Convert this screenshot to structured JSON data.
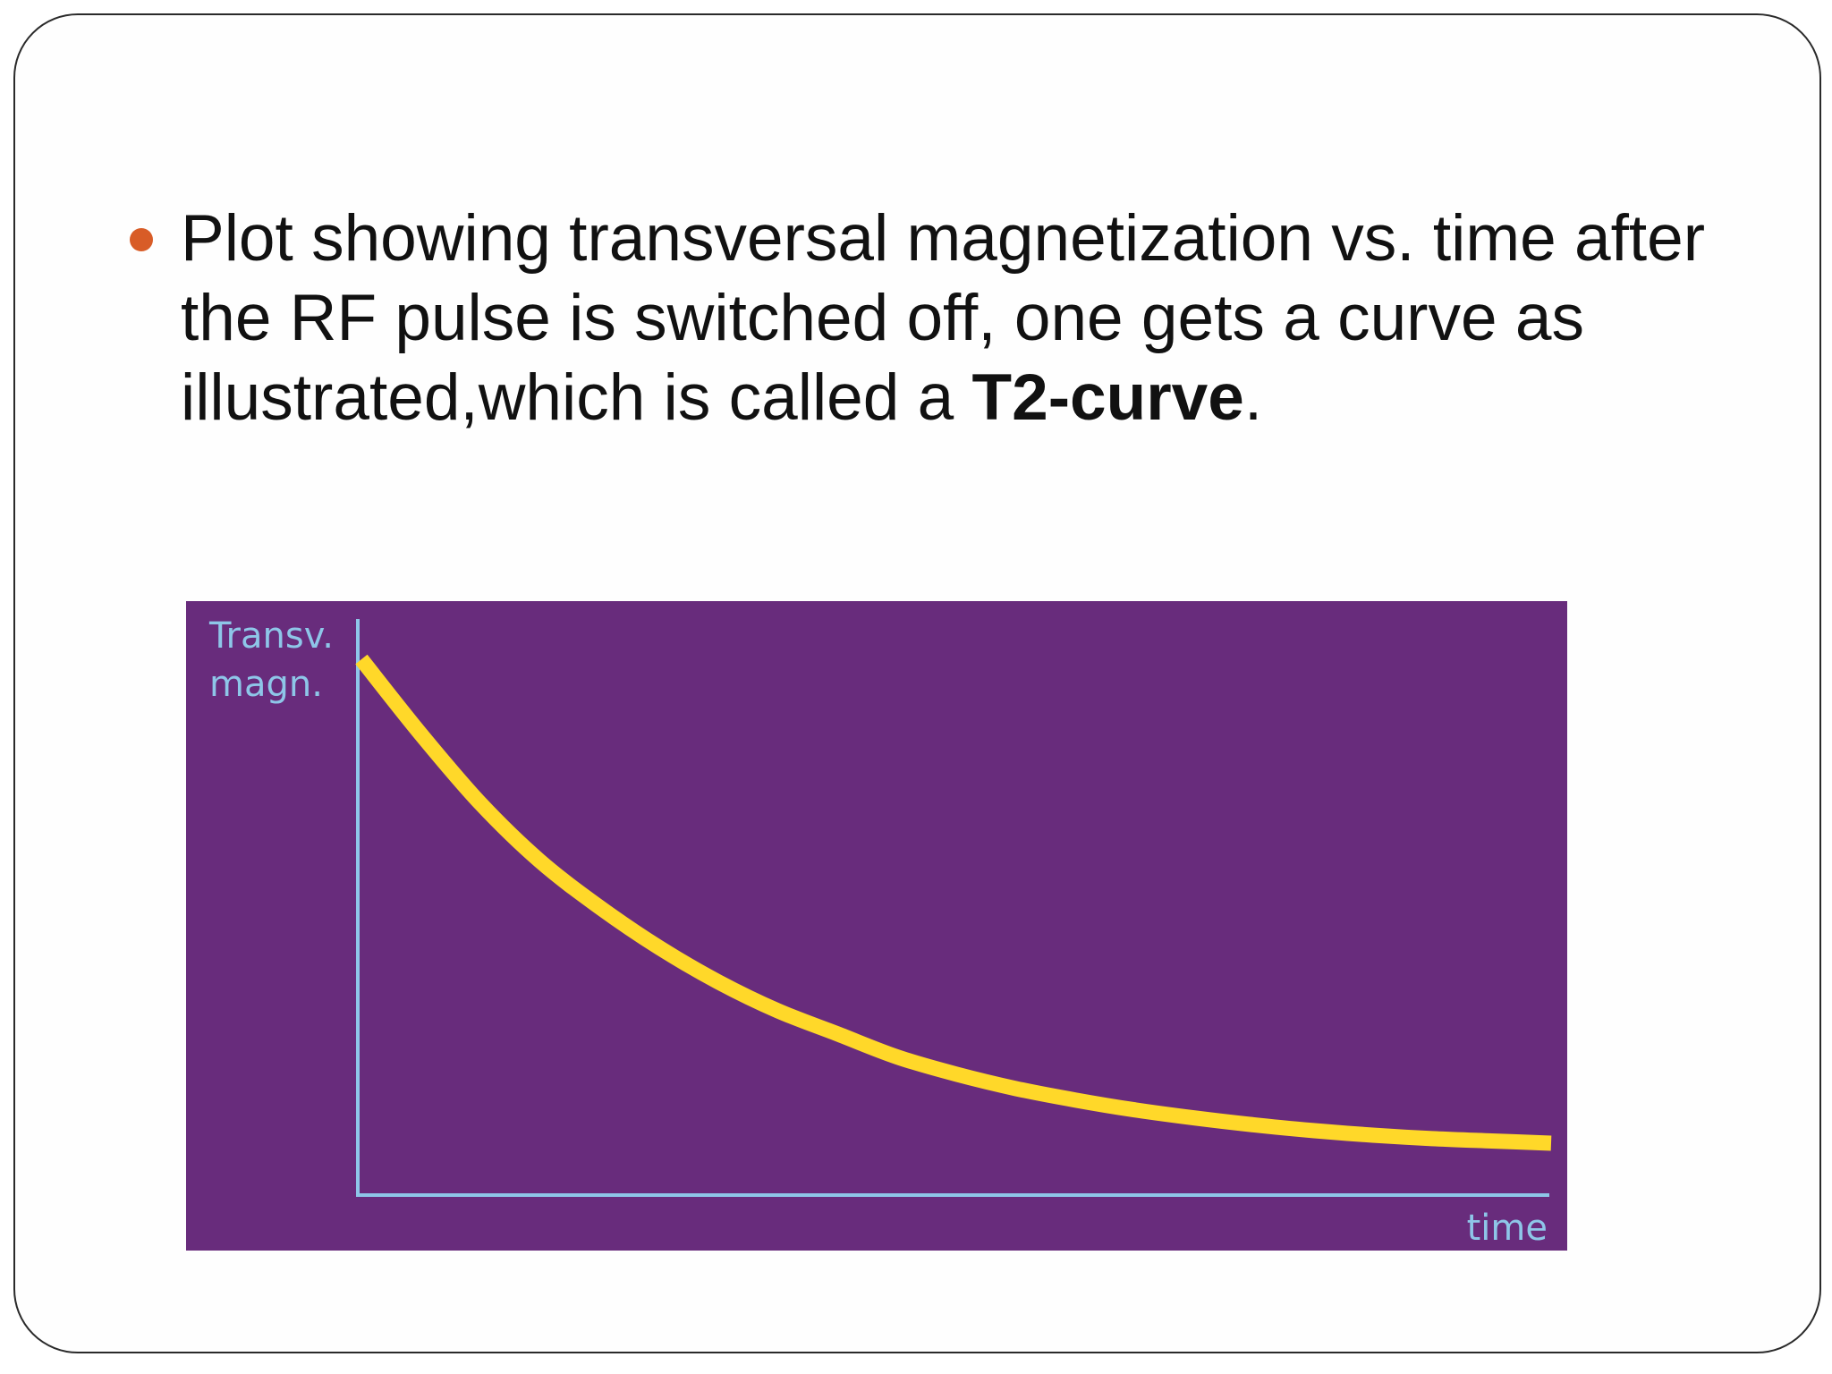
{
  "slide": {
    "bullet": {
      "text_lead": "Plot showing transversal magnetization vs. time after the RF pulse is switched off, one gets a curve as illustrated,which is called a ",
      "text_bold": "T2-curve",
      "text_tail": "."
    },
    "colors": {
      "bullet": "#d85c27",
      "chart_background": "#682c7c",
      "axis": "#8ec6e8",
      "curve": "#ffd829"
    }
  },
  "chart_data": {
    "type": "line",
    "title": "",
    "ylabel_line1": "Transv.",
    "ylabel_line2": "magn.",
    "xlabel": "time",
    "xlim": [
      0,
      10
    ],
    "ylim": [
      0,
      1
    ],
    "grid": false,
    "legend": "none",
    "series": [
      {
        "x": [
          0,
          0.5,
          1,
          1.5,
          2,
          2.5,
          3,
          3.5,
          4,
          4.5,
          5,
          5.5,
          6,
          6.5,
          7,
          7.5,
          8,
          8.5,
          9,
          9.5,
          10
        ],
        "y": [
          0.93,
          0.8,
          0.68,
          0.58,
          0.5,
          0.43,
          0.37,
          0.32,
          0.28,
          0.24,
          0.21,
          0.185,
          0.165,
          0.148,
          0.134,
          0.122,
          0.112,
          0.104,
          0.098,
          0.094,
          0.09
        ]
      }
    ]
  }
}
